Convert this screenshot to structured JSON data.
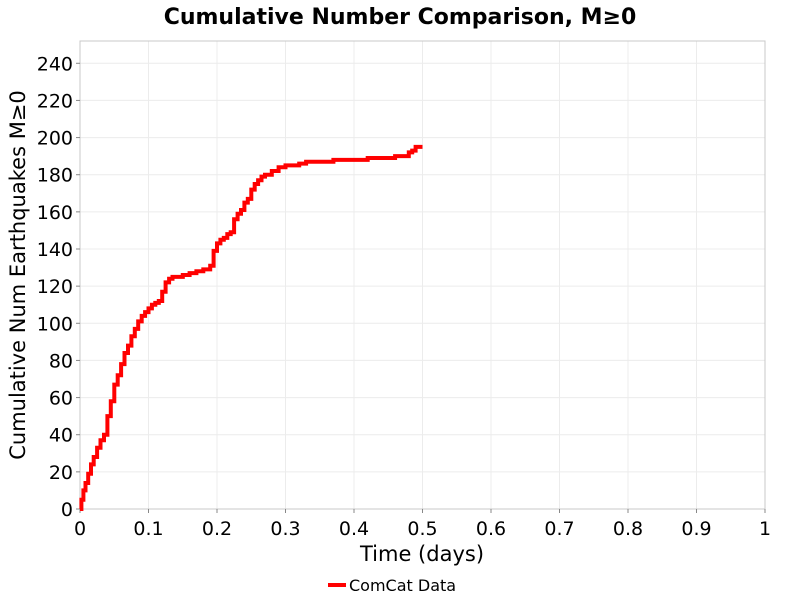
{
  "chart_data": {
    "type": "line",
    "title": "Cumulative Number Comparison, M≥0",
    "xlabel": "Time (days)",
    "ylabel": "Cumulative Num Earthquakes M≥0",
    "xlim": [
      0,
      1
    ],
    "ylim": [
      0,
      252
    ],
    "x_ticks": [
      "0",
      "0.1",
      "0.2",
      "0.3",
      "0.4",
      "0.5",
      "0.6",
      "0.7",
      "0.8",
      "0.9",
      "1"
    ],
    "y_ticks": [
      "0",
      "20",
      "40",
      "60",
      "80",
      "100",
      "120",
      "140",
      "160",
      "180",
      "200",
      "220",
      "240"
    ],
    "grid": true,
    "legend_position": "bottom-center",
    "series": [
      {
        "name": "ComCat Data",
        "color": "#ff0000",
        "x": [
          0,
          0.002,
          0.005,
          0.008,
          0.012,
          0.016,
          0.02,
          0.025,
          0.03,
          0.035,
          0.04,
          0.045,
          0.05,
          0.055,
          0.06,
          0.065,
          0.07,
          0.075,
          0.08,
          0.085,
          0.09,
          0.095,
          0.1,
          0.105,
          0.11,
          0.115,
          0.12,
          0.125,
          0.13,
          0.135,
          0.14,
          0.15,
          0.16,
          0.17,
          0.18,
          0.19,
          0.195,
          0.2,
          0.205,
          0.21,
          0.215,
          0.22,
          0.225,
          0.23,
          0.235,
          0.24,
          0.245,
          0.25,
          0.255,
          0.26,
          0.265,
          0.27,
          0.28,
          0.29,
          0.3,
          0.31,
          0.32,
          0.33,
          0.35,
          0.37,
          0.4,
          0.42,
          0.45,
          0.46,
          0.47,
          0.48,
          0.485,
          0.49,
          0.5
        ],
        "y": [
          0,
          5,
          10,
          14,
          19,
          24,
          28,
          33,
          37,
          40,
          50,
          58,
          67,
          72,
          78,
          84,
          88,
          93,
          97,
          101,
          104,
          106,
          108,
          110,
          111,
          112,
          117,
          122,
          124,
          125,
          125,
          126,
          127,
          128,
          129,
          131,
          139,
          143,
          145,
          146,
          148,
          149,
          156,
          159,
          161,
          165,
          167,
          172,
          175,
          177,
          179,
          180,
          182,
          184,
          185,
          185,
          186,
          187,
          187,
          188,
          188,
          189,
          189,
          190,
          190,
          192,
          193,
          195,
          195
        ]
      }
    ]
  }
}
